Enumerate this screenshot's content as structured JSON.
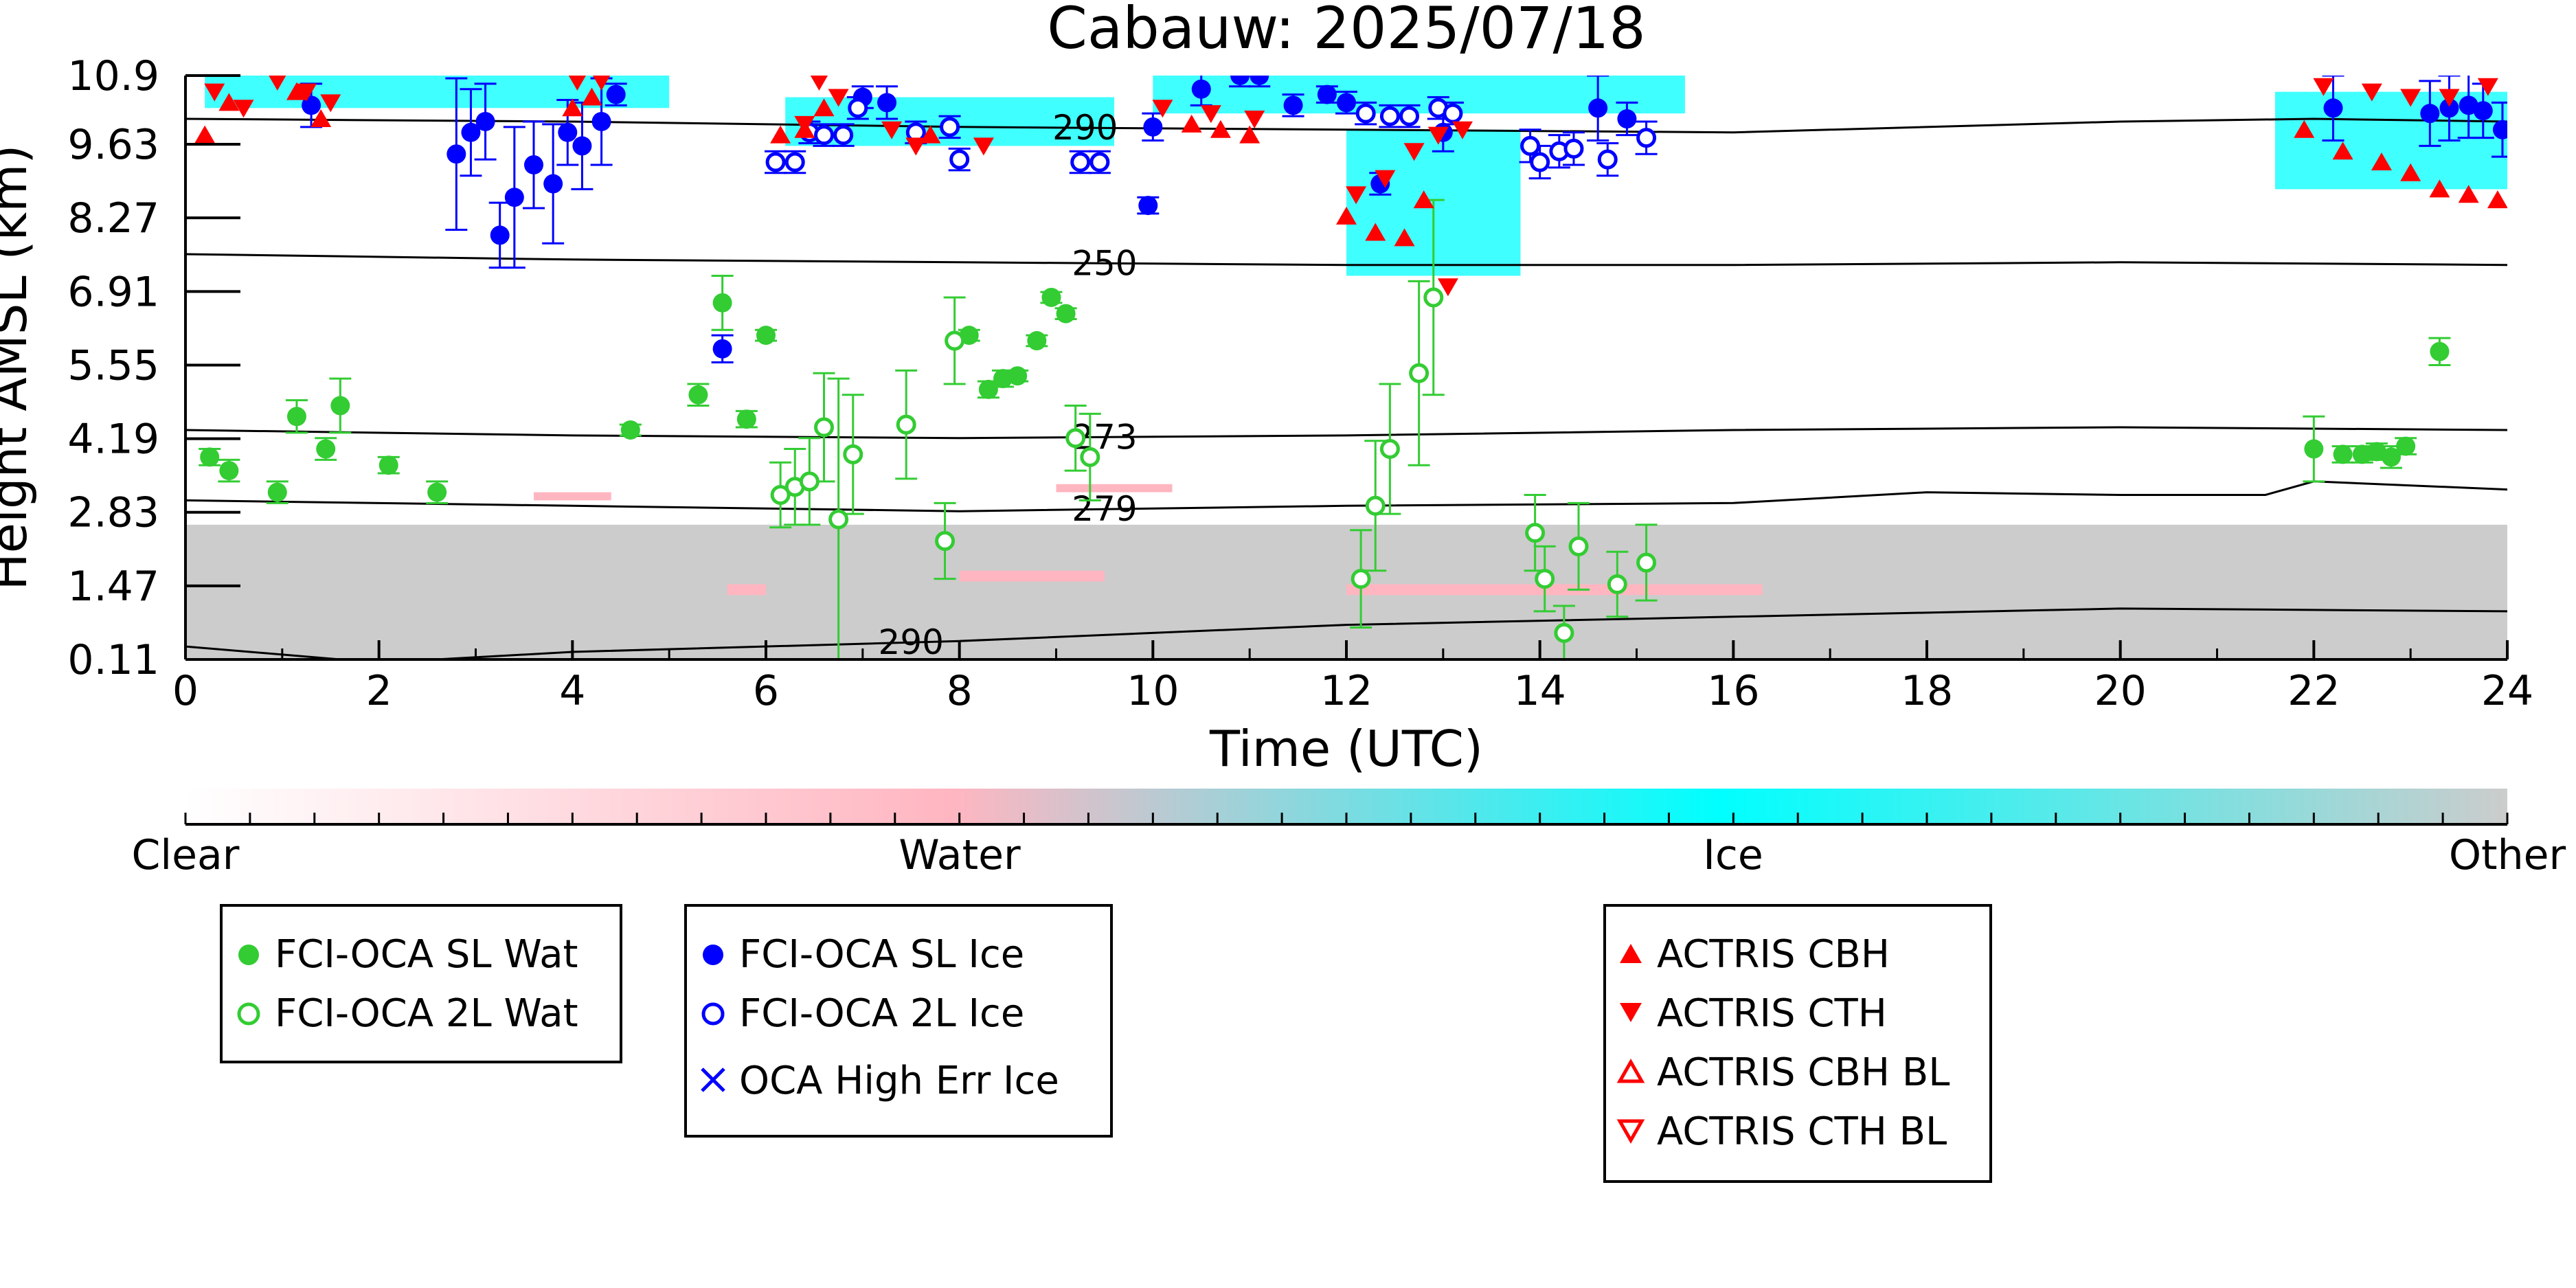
{
  "chart_data": {
    "type": "scatter",
    "title": "Cabauw: 2025/07/18",
    "xlabel": "Time (UTC)",
    "ylabel": "Height AMSL (km)",
    "xlim": [
      0,
      24
    ],
    "ylim": [
      0.11,
      10.9
    ],
    "x_ticks": [
      0,
      2,
      4,
      6,
      8,
      10,
      12,
      14,
      16,
      18,
      20,
      22,
      24
    ],
    "y_ticks": [
      "0.11",
      "1.47",
      "2.83",
      "4.19",
      "5.55",
      "6.91",
      "8.27",
      "9.63",
      "10.9"
    ],
    "colorbar": {
      "labels": [
        "Clear",
        "Water",
        "Ice",
        "Other"
      ],
      "colors": [
        "#ffffff",
        "#ffb6c1",
        "#00ffff",
        "#cccccc"
      ]
    },
    "contours": [
      {
        "label": "290",
        "label_x": 9.3,
        "values": [
          [
            0,
            10.1
          ],
          [
            4,
            10.05
          ],
          [
            8,
            9.95
          ],
          [
            12,
            9.9
          ],
          [
            16,
            9.85
          ],
          [
            20,
            10.05
          ],
          [
            22,
            10.1
          ],
          [
            24,
            10.05
          ]
        ]
      },
      {
        "label": "250",
        "label_x": 9.5,
        "values": [
          [
            0,
            7.6
          ],
          [
            4,
            7.5
          ],
          [
            8,
            7.45
          ],
          [
            12,
            7.4
          ],
          [
            16,
            7.4
          ],
          [
            20,
            7.45
          ],
          [
            24,
            7.4
          ]
        ]
      },
      {
        "label": "273",
        "label_x": 9.5,
        "values": [
          [
            0,
            4.35
          ],
          [
            4,
            4.25
          ],
          [
            8,
            4.2
          ],
          [
            12,
            4.25
          ],
          [
            16,
            4.35
          ],
          [
            20,
            4.4
          ],
          [
            24,
            4.35
          ]
        ]
      },
      {
        "label": "279",
        "label_x": 9.5,
        "values": [
          [
            0,
            3.05
          ],
          [
            4,
            2.95
          ],
          [
            8,
            2.85
          ],
          [
            12,
            2.95
          ],
          [
            16,
            3.0
          ],
          [
            18,
            3.2
          ],
          [
            20,
            3.15
          ],
          [
            21.5,
            3.15
          ],
          [
            22,
            3.4
          ],
          [
            24,
            3.25
          ]
        ]
      },
      {
        "label": "290",
        "label_x": 7.5,
        "values": [
          [
            0,
            0.35
          ],
          [
            2,
            0.05
          ],
          [
            4,
            0.25
          ],
          [
            8,
            0.45
          ],
          [
            12,
            0.75
          ],
          [
            16,
            0.9
          ],
          [
            20,
            1.05
          ],
          [
            24,
            1.0
          ]
        ]
      }
    ],
    "series": [
      {
        "name": "FCI-OCA SL Wat",
        "marker": "filled-circle",
        "color": "#33cc33",
        "points": [
          [
            0.25,
            3.85,
            0.15
          ],
          [
            0.45,
            3.6,
            0.2
          ],
          [
            0.95,
            3.2,
            0.2
          ],
          [
            1.15,
            4.6,
            0.3
          ],
          [
            1.45,
            4.0,
            0.2
          ],
          [
            1.6,
            4.8,
            0.5
          ],
          [
            2.1,
            3.7,
            0.15
          ],
          [
            2.6,
            3.2,
            0.2
          ],
          [
            4.6,
            4.35,
            0.1
          ],
          [
            5.3,
            5.0,
            0.2
          ],
          [
            5.55,
            6.7,
            0.5
          ],
          [
            5.8,
            4.55,
            0.15
          ],
          [
            6.0,
            6.1,
            0.1
          ],
          [
            8.1,
            6.1,
            0.1
          ],
          [
            8.3,
            5.1,
            0.15
          ],
          [
            8.45,
            5.3,
            0.15
          ],
          [
            8.6,
            5.35,
            0.1
          ],
          [
            8.8,
            6.0,
            0.1
          ],
          [
            8.95,
            6.8,
            0.1
          ],
          [
            9.1,
            6.5,
            0.1
          ],
          [
            22.0,
            4.0,
            0.6
          ],
          [
            22.3,
            3.9,
            0.15
          ],
          [
            22.5,
            3.9,
            0.15
          ],
          [
            22.65,
            3.95,
            0.15
          ],
          [
            22.8,
            3.85,
            0.2
          ],
          [
            22.95,
            4.05,
            0.15
          ],
          [
            23.3,
            5.8,
            0.25
          ]
        ]
      },
      {
        "name": "FCI-OCA 2L Wat",
        "marker": "open-circle",
        "color": "#33cc33",
        "points": [
          [
            6.15,
            3.15,
            0.6
          ],
          [
            6.3,
            3.3,
            0.7
          ],
          [
            6.45,
            3.4,
            0.8
          ],
          [
            6.6,
            4.4,
            1.0
          ],
          [
            6.75,
            2.7,
            2.6
          ],
          [
            6.9,
            3.9,
            1.1
          ],
          [
            7.45,
            4.45,
            1.0
          ],
          [
            7.85,
            2.3,
            0.7
          ],
          [
            7.95,
            6.0,
            0.8
          ],
          [
            9.2,
            4.2,
            0.6
          ],
          [
            9.35,
            3.85,
            0.8
          ],
          [
            12.15,
            1.6,
            0.9
          ],
          [
            12.3,
            2.95,
            1.2
          ],
          [
            12.45,
            4.0,
            1.2
          ],
          [
            12.75,
            5.4,
            1.7
          ],
          [
            12.9,
            6.8,
            1.8
          ],
          [
            13.95,
            2.45,
            0.7
          ],
          [
            14.05,
            1.6,
            0.6
          ],
          [
            14.25,
            0.6,
            0.5
          ],
          [
            14.4,
            2.2,
            0.8
          ],
          [
            14.8,
            1.5,
            0.6
          ],
          [
            15.1,
            1.9,
            0.7
          ]
        ]
      },
      {
        "name": "FCI-OCA SL Ice",
        "marker": "filled-circle",
        "color": "#0000ff",
        "points": [
          [
            1.3,
            10.35,
            0.4
          ],
          [
            2.8,
            9.45,
            1.4
          ],
          [
            2.95,
            9.85,
            0.8
          ],
          [
            3.1,
            10.05,
            0.7
          ],
          [
            3.25,
            7.95,
            0.6
          ],
          [
            3.4,
            8.65,
            1.3
          ],
          [
            3.6,
            9.25,
            0.8
          ],
          [
            3.8,
            8.9,
            1.1
          ],
          [
            3.95,
            9.85,
            0.6
          ],
          [
            4.1,
            9.6,
            0.8
          ],
          [
            4.3,
            10.05,
            0.8
          ],
          [
            4.45,
            10.55,
            0.2
          ],
          [
            5.55,
            5.85,
            0.25
          ],
          [
            7.0,
            10.5,
            0.2
          ],
          [
            7.25,
            10.4,
            0.3
          ],
          [
            10.0,
            9.95,
            0.25
          ],
          [
            9.95,
            8.5,
            0.15
          ],
          [
            10.5,
            10.65,
            0.3
          ],
          [
            10.9,
            10.9,
            0.2
          ],
          [
            11.1,
            10.9,
            0.2
          ],
          [
            11.45,
            10.35,
            0.2
          ],
          [
            11.8,
            10.55,
            0.15
          ],
          [
            12.0,
            10.4,
            0.2
          ],
          [
            12.35,
            8.9,
            0.2
          ],
          [
            13.0,
            9.85,
            0.35
          ],
          [
            14.6,
            10.3,
            0.6
          ],
          [
            14.9,
            10.1,
            0.3
          ],
          [
            22.2,
            10.3,
            0.6
          ],
          [
            23.2,
            10.2,
            0.6
          ],
          [
            23.4,
            10.3,
            0.6
          ],
          [
            23.6,
            10.35,
            0.6
          ],
          [
            23.75,
            10.25,
            0.5
          ],
          [
            23.95,
            9.9,
            0.5
          ]
        ]
      },
      {
        "name": "FCI-OCA 2L Ice",
        "marker": "open-circle",
        "color": "#0000ff",
        "points": [
          [
            6.1,
            9.3,
            0.2
          ],
          [
            6.3,
            9.3,
            0.2
          ],
          [
            6.45,
            9.85,
            0.2
          ],
          [
            6.6,
            9.8,
            0.2
          ],
          [
            6.8,
            9.8,
            0.2
          ],
          [
            6.95,
            10.3,
            0.2
          ],
          [
            7.55,
            9.85,
            0.2
          ],
          [
            7.9,
            9.95,
            0.2
          ],
          [
            8.0,
            9.35,
            0.2
          ],
          [
            9.25,
            9.3,
            0.2
          ],
          [
            9.45,
            9.3,
            0.2
          ],
          [
            12.2,
            10.2,
            0.2
          ],
          [
            12.45,
            10.15,
            0.2
          ],
          [
            12.65,
            10.15,
            0.2
          ],
          [
            12.95,
            10.3,
            0.2
          ],
          [
            13.1,
            10.2,
            0.2
          ],
          [
            13.9,
            9.6,
            0.3
          ],
          [
            14.0,
            9.3,
            0.3
          ],
          [
            14.2,
            9.5,
            0.3
          ],
          [
            14.35,
            9.55,
            0.3
          ],
          [
            14.7,
            9.35,
            0.3
          ],
          [
            15.1,
            9.75,
            0.3
          ]
        ]
      },
      {
        "name": "ACTRIS CBH",
        "marker": "filled-triangle-up",
        "color": "#ff0000",
        "points": [
          [
            0.2,
            9.8
          ],
          [
            0.45,
            10.4
          ],
          [
            1.15,
            10.6
          ],
          [
            1.4,
            10.1
          ],
          [
            4.0,
            10.3
          ],
          [
            4.2,
            10.5
          ],
          [
            6.15,
            9.8
          ],
          [
            6.4,
            9.9
          ],
          [
            6.6,
            10.3
          ],
          [
            7.7,
            9.8
          ],
          [
            10.4,
            10.0
          ],
          [
            10.7,
            9.9
          ],
          [
            11.0,
            9.8
          ],
          [
            12.0,
            8.3
          ],
          [
            12.3,
            8.0
          ],
          [
            12.6,
            7.9
          ],
          [
            12.8,
            8.6
          ],
          [
            21.9,
            9.9
          ],
          [
            22.3,
            9.5
          ],
          [
            22.7,
            9.3
          ],
          [
            23.0,
            9.1
          ],
          [
            23.3,
            8.8
          ],
          [
            23.6,
            8.7
          ],
          [
            23.9,
            8.6
          ]
        ]
      },
      {
        "name": "ACTRIS CTH",
        "marker": "filled-triangle-down",
        "color": "#ff0000",
        "points": [
          [
            0.3,
            10.6
          ],
          [
            0.6,
            10.3
          ],
          [
            0.95,
            10.8
          ],
          [
            1.25,
            10.6
          ],
          [
            1.5,
            10.4
          ],
          [
            4.05,
            10.8
          ],
          [
            4.3,
            10.8
          ],
          [
            6.55,
            10.8
          ],
          [
            6.75,
            10.5
          ],
          [
            6.4,
            10.0
          ],
          [
            7.3,
            9.9
          ],
          [
            7.55,
            9.6
          ],
          [
            8.25,
            9.6
          ],
          [
            10.1,
            10.3
          ],
          [
            10.6,
            10.2
          ],
          [
            11.05,
            10.1
          ],
          [
            12.1,
            8.7
          ],
          [
            12.4,
            9.0
          ],
          [
            12.7,
            9.5
          ],
          [
            12.95,
            9.8
          ],
          [
            13.05,
            7.0
          ],
          [
            13.2,
            9.9
          ],
          [
            22.1,
            10.7
          ],
          [
            22.6,
            10.6
          ],
          [
            23.0,
            10.5
          ],
          [
            23.4,
            10.5
          ],
          [
            23.8,
            10.7
          ]
        ]
      },
      {
        "name": "ACTRIS CBH BL",
        "marker": "open-triangle-up",
        "color": "#ff0000",
        "points": []
      },
      {
        "name": "ACTRIS CTH BL",
        "marker": "open-triangle-down",
        "color": "#ff0000",
        "points": []
      },
      {
        "name": "OCA High Err Ice",
        "marker": "cross",
        "color": "#0000ff",
        "points": []
      }
    ],
    "cloud_mask_regions": [
      {
        "class": "Other",
        "color": "#cccccc",
        "x": [
          0,
          24
        ],
        "y": [
          0.11,
          2.6
        ]
      },
      {
        "class": "Water",
        "color": "#ffb6c1",
        "x": [
          5.6,
          6.0
        ],
        "y": [
          1.3,
          1.5
        ]
      },
      {
        "class": "Water",
        "color": "#ffb6c1",
        "x": [
          8.0,
          9.5
        ],
        "y": [
          1.55,
          1.75
        ]
      },
      {
        "class": "Water",
        "color": "#ffb6c1",
        "x": [
          12.0,
          16.3
        ],
        "y": [
          1.3,
          1.5
        ]
      },
      {
        "class": "Water",
        "color": "#ffb6c1",
        "x": [
          3.6,
          4.4
        ],
        "y": [
          3.05,
          3.2
        ]
      },
      {
        "class": "Water",
        "color": "#ffb6c1",
        "x": [
          9.0,
          10.2
        ],
        "y": [
          3.2,
          3.35
        ]
      },
      {
        "class": "Ice",
        "color": "#00ffff",
        "x": [
          0.2,
          5.0
        ],
        "y": [
          10.3,
          10.9
        ]
      },
      {
        "class": "Ice",
        "color": "#00ffff",
        "x": [
          6.2,
          9.6
        ],
        "y": [
          9.6,
          10.5
        ]
      },
      {
        "class": "Ice",
        "color": "#00ffff",
        "x": [
          10.0,
          15.5
        ],
        "y": [
          10.2,
          10.9
        ]
      },
      {
        "class": "Ice",
        "color": "#00ffff",
        "x": [
          12.0,
          13.8
        ],
        "y": [
          7.2,
          9.9
        ]
      },
      {
        "class": "Ice",
        "color": "#00ffff",
        "x": [
          21.6,
          24.0
        ],
        "y": [
          8.8,
          10.6
        ]
      }
    ],
    "legends": [
      [
        "FCI-OCA SL Wat",
        "FCI-OCA 2L Wat"
      ],
      [
        "FCI-OCA SL Ice",
        "FCI-OCA 2L Ice",
        "OCA High Err Ice"
      ],
      [
        "ACTRIS CBH",
        "ACTRIS CTH",
        "ACTRIS CBH BL",
        "ACTRIS CTH BL"
      ]
    ]
  }
}
